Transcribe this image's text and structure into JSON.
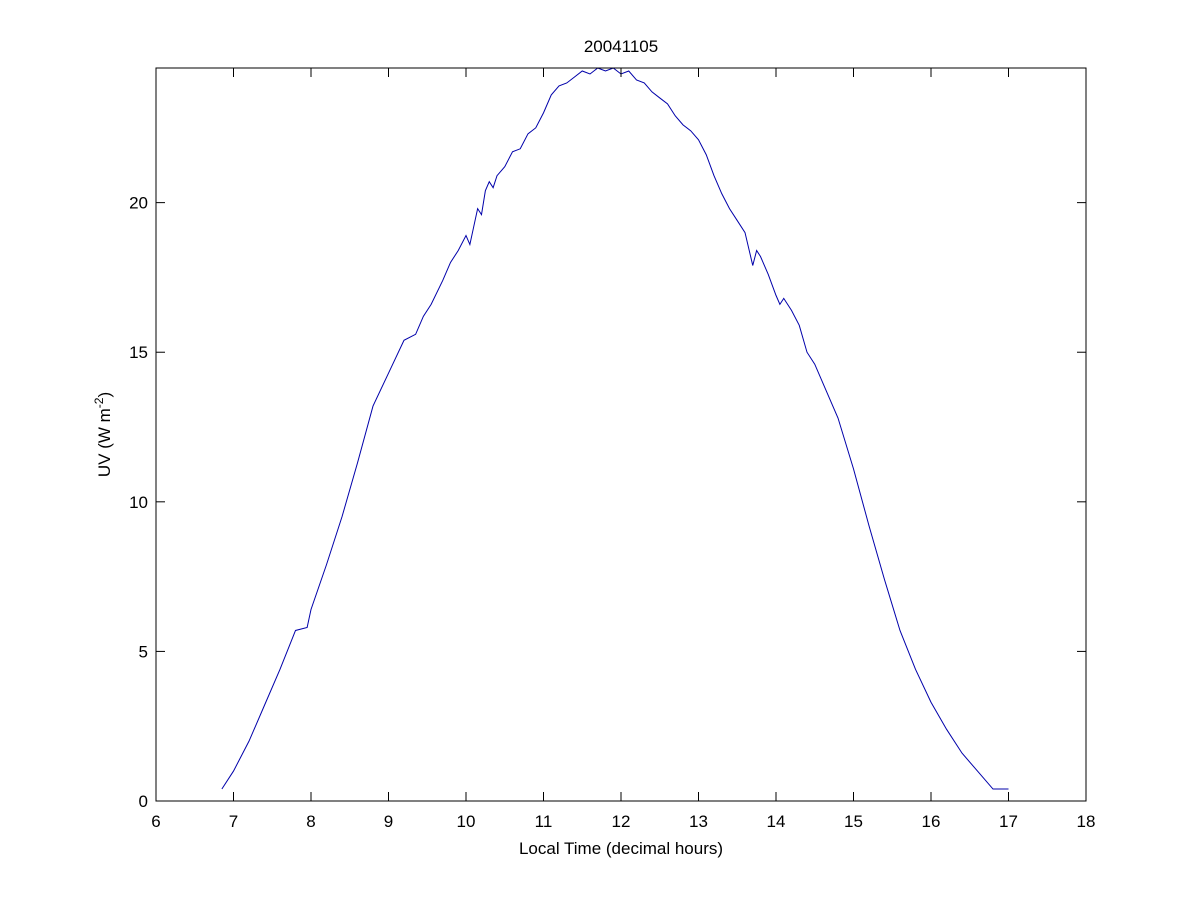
{
  "chart_data": {
    "type": "line",
    "title": "20041105",
    "xlabel": "Local Time (decimal hours)",
    "ylabel": {
      "prefix": "UV (W m",
      "superscript": "-2",
      "suffix": ")"
    },
    "xlim": [
      6,
      18
    ],
    "ylim": [
      0,
      24.5
    ],
    "xticks": [
      6,
      7,
      8,
      9,
      10,
      11,
      12,
      13,
      14,
      15,
      16,
      17,
      18
    ],
    "yticks": [
      0,
      5,
      10,
      15,
      20
    ],
    "grid": false,
    "legend": "none",
    "colors": {
      "line": "#0000aa",
      "axes": "#000000",
      "background": "#ffffff"
    },
    "series": [
      {
        "x": [
          6.85,
          7.0,
          7.2,
          7.4,
          7.6,
          7.8,
          7.95,
          8.0,
          8.2,
          8.4,
          8.6,
          8.8,
          9.0,
          9.2,
          9.35,
          9.45,
          9.55,
          9.7,
          9.8,
          9.9,
          10.0,
          10.05,
          10.1,
          10.15,
          10.2,
          10.25,
          10.3,
          10.35,
          10.4,
          10.5,
          10.6,
          10.7,
          10.8,
          10.9,
          11.0,
          11.1,
          11.2,
          11.3,
          11.4,
          11.5,
          11.6,
          11.7,
          11.8,
          11.9,
          12.0,
          12.1,
          12.2,
          12.3,
          12.4,
          12.5,
          12.6,
          12.7,
          12.8,
          12.9,
          13.0,
          13.1,
          13.2,
          13.3,
          13.4,
          13.5,
          13.6,
          13.7,
          13.75,
          13.8,
          13.9,
          14.0,
          14.05,
          14.1,
          14.2,
          14.3,
          14.4,
          14.5,
          14.6,
          14.8,
          15.0,
          15.2,
          15.4,
          15.6,
          15.8,
          16.0,
          16.2,
          16.4,
          16.6,
          16.8,
          17.0
        ],
        "y": [
          0.4,
          1.0,
          2.0,
          3.2,
          4.4,
          5.7,
          5.8,
          6.4,
          7.9,
          9.5,
          11.3,
          13.2,
          14.3,
          15.4,
          15.6,
          16.2,
          16.6,
          17.4,
          18.0,
          18.4,
          18.9,
          18.6,
          19.2,
          19.8,
          19.6,
          20.4,
          20.7,
          20.5,
          20.9,
          21.2,
          21.7,
          21.8,
          22.3,
          22.5,
          23.0,
          23.6,
          23.9,
          24.0,
          24.2,
          24.4,
          24.3,
          24.5,
          24.4,
          24.5,
          24.3,
          24.4,
          24.1,
          24.0,
          23.7,
          23.5,
          23.3,
          22.9,
          22.6,
          22.4,
          22.1,
          21.6,
          20.9,
          20.3,
          19.8,
          19.4,
          19.0,
          17.9,
          18.4,
          18.2,
          17.6,
          16.9,
          16.6,
          16.8,
          16.4,
          15.9,
          15.0,
          14.6,
          14.0,
          12.8,
          11.1,
          9.2,
          7.4,
          5.7,
          4.4,
          3.3,
          2.4,
          1.6,
          1.0,
          0.4,
          0.4
        ]
      }
    ]
  }
}
